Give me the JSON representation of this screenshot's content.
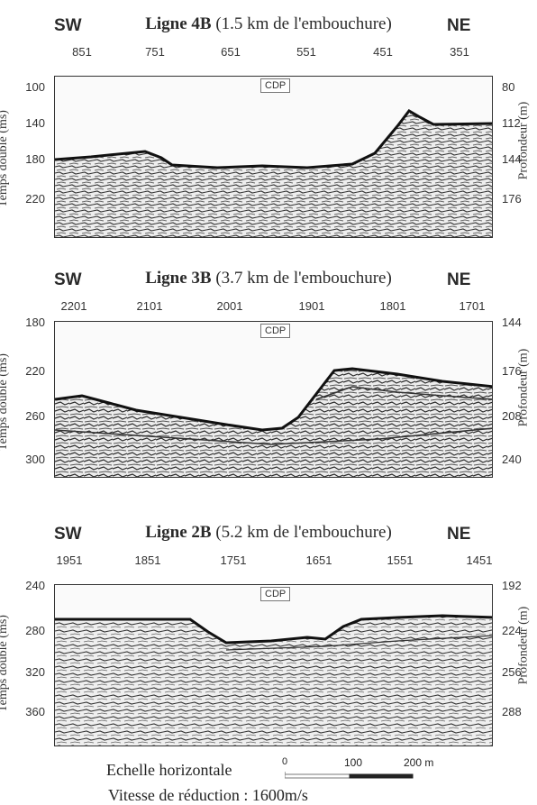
{
  "panels": [
    {
      "sw": "SW",
      "ne": "NE",
      "title_bold": "Ligne 4B",
      "title_rest": " (1.5 km de l'embouchure)",
      "cdp_ticks": [
        "851",
        "751",
        "651",
        "551",
        "451",
        "351"
      ],
      "cdp_box": "CDP",
      "left_ticks": [
        "100",
        "140",
        "180",
        "220"
      ],
      "right_ticks": [
        "80",
        "112",
        "144",
        "176"
      ],
      "left_axis": "Temps double (ms)",
      "right_axis": "Profondeur (m)"
    },
    {
      "sw": "SW",
      "ne": "NE",
      "title_bold": "Ligne 3B",
      "title_rest": " (3.7 km de l'embouchure)",
      "cdp_ticks": [
        "2201",
        "2101",
        "2001",
        "1901",
        "1801",
        "1701"
      ],
      "cdp_box": "CDP",
      "left_ticks": [
        "180",
        "220",
        "260",
        "300"
      ],
      "right_ticks": [
        "144",
        "176",
        "208",
        "240"
      ],
      "left_axis": "Temps double (ms)",
      "right_axis": "Profondeur (m)"
    },
    {
      "sw": "SW",
      "ne": "NE",
      "title_bold": "Ligne 2B",
      "title_rest": " (5.2 km de l'embouchure)",
      "cdp_ticks": [
        "1951",
        "1851",
        "1751",
        "1651",
        "1551",
        "1451"
      ],
      "cdp_box": "CDP",
      "left_ticks": [
        "240",
        "280",
        "320",
        "360"
      ],
      "right_ticks": [
        "192",
        "224",
        "256",
        "288"
      ],
      "left_axis": "Temps double (ms)",
      "right_axis": "Profondeur (m)"
    }
  ],
  "scale": {
    "label": "Echelle horizontale",
    "ticks": [
      "0",
      "100",
      "200 m"
    ]
  },
  "velocity": "Vitesse de réduction : 1600m/s"
}
